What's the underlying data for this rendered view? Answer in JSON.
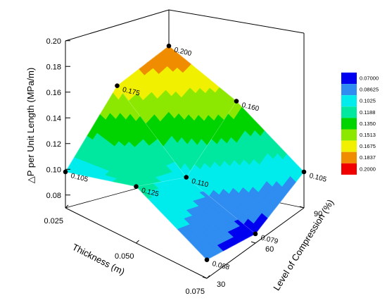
{
  "chart_data": {
    "type": "surface-3d",
    "xlabel": "Thickness (m)",
    "ylabel": "Level of Compression (%)",
    "zlabel": "△P per Unit Length (MPa/m)",
    "x_ticks": [
      "0.025",
      "0.050",
      "0.075"
    ],
    "y_ticks": [
      "30",
      "60",
      "90"
    ],
    "z_ticks": [
      "0.08",
      "0.10",
      "0.12",
      "0.14",
      "0.16",
      "0.18",
      "0.20"
    ],
    "zlim": [
      0.07,
      0.2
    ],
    "points": [
      {
        "thickness": 0.025,
        "compression": 30,
        "value": 0.105,
        "label": "0.105"
      },
      {
        "thickness": 0.05,
        "compression": 30,
        "value": 0.125,
        "label": "0.125"
      },
      {
        "thickness": 0.075,
        "compression": 30,
        "value": 0.088,
        "label": "0.088"
      },
      {
        "thickness": 0.025,
        "compression": 60,
        "value": 0.175,
        "label": "0.175"
      },
      {
        "thickness": 0.05,
        "compression": 60,
        "value": 0.11,
        "label": "0.110"
      },
      {
        "thickness": 0.075,
        "compression": 60,
        "value": 0.079,
        "label": "0.079"
      },
      {
        "thickness": 0.025,
        "compression": 90,
        "value": 0.2,
        "label": "0.200"
      },
      {
        "thickness": 0.05,
        "compression": 90,
        "value": 0.16,
        "label": "0.160"
      },
      {
        "thickness": 0.075,
        "compression": 90,
        "value": 0.105,
        "label": "0.105"
      }
    ],
    "legend": {
      "placement": "right",
      "levels": [
        "0.07000",
        "0.08625",
        "0.1025",
        "0.1188",
        "0.1350",
        "0.1513",
        "0.1675",
        "0.1837",
        "0.2000"
      ],
      "colors": [
        "#0000f0",
        "#2f8cf0",
        "#00ecec",
        "#00e8a0",
        "#00d400",
        "#8ce800",
        "#f0f000",
        "#f08c00",
        "#f00000"
      ]
    }
  }
}
